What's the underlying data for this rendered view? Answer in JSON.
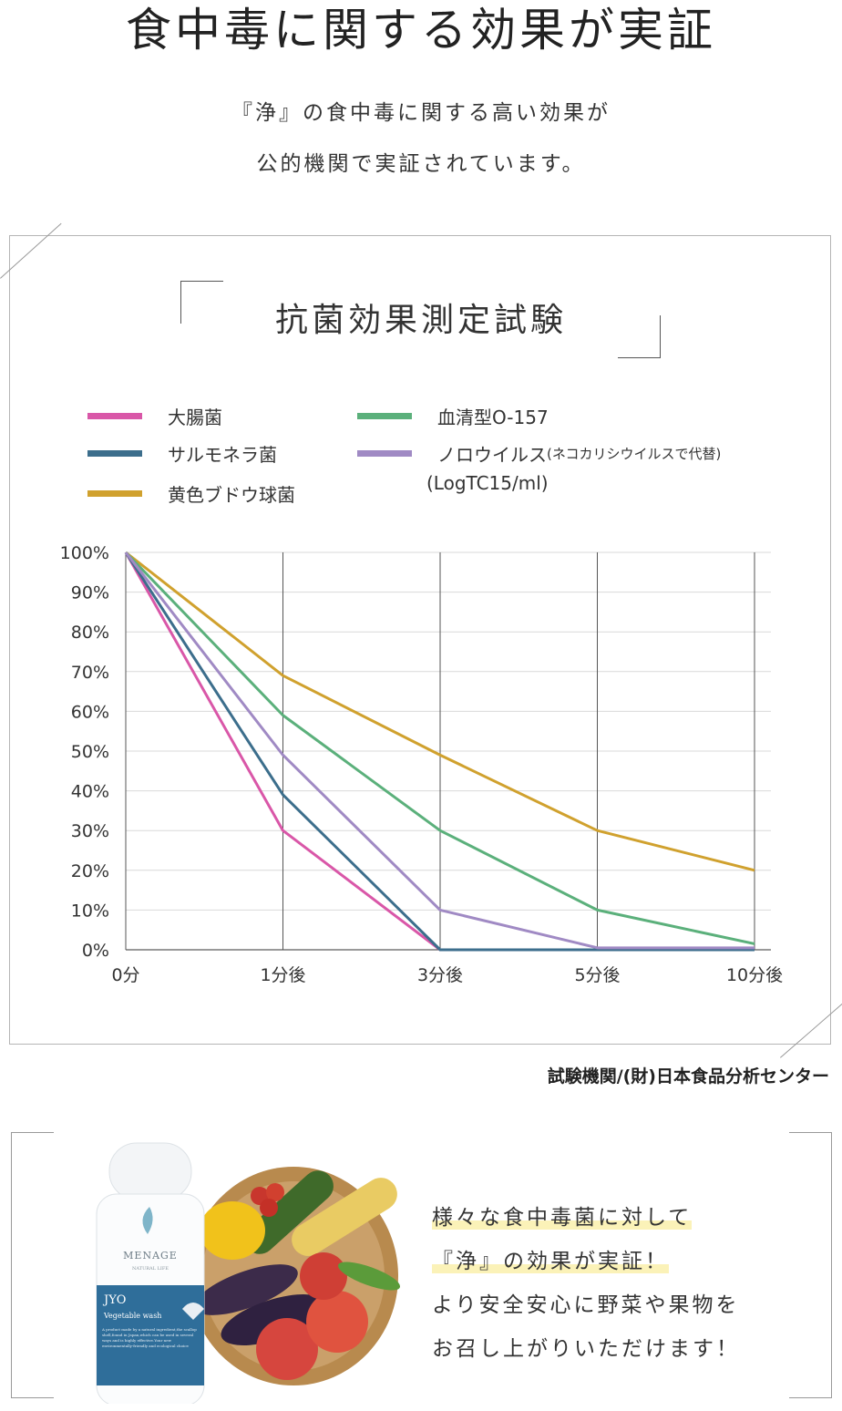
{
  "page": {
    "title": "食中毒に関する効果が実証",
    "lead_lines": [
      "『浄』の食中毒に関する高い効果が",
      "公的機関で実証されています。"
    ]
  },
  "chart_data": {
    "type": "line",
    "title": "抗菌効果測定試験",
    "categories": [
      "0分",
      "1分後",
      "3分後",
      "5分後",
      "10分後"
    ],
    "y_ticks": [
      "0%",
      "10%",
      "20%",
      "30%",
      "40%",
      "50%",
      "60%",
      "70%",
      "80%",
      "90%",
      "100%"
    ],
    "ylim": [
      0,
      100
    ],
    "series": [
      {
        "name": "大腸菌",
        "color": "#d957a8",
        "values": [
          100,
          30,
          0,
          0,
          0
        ]
      },
      {
        "name": "サルモネラ菌",
        "color": "#3c6e8c",
        "values": [
          100,
          39,
          0,
          0,
          0
        ]
      },
      {
        "name": "黄色ブドウ球菌",
        "color": "#d0a12e",
        "values": [
          100,
          69,
          49,
          30,
          20
        ]
      },
      {
        "name": "血清型O-157",
        "color": "#5bb07b",
        "values": [
          100,
          59,
          30,
          10,
          1.5
        ]
      },
      {
        "name": "ノロウイルス",
        "color": "#a08ac4",
        "values": [
          100,
          49,
          10,
          0.5,
          0.5
        ]
      }
    ],
    "legend_note": "(ネコカリシウイルスで代替)",
    "unit_note": "(LogTC15/ml)",
    "source": "試験機関/(財)日本食品分析センター"
  },
  "promo": {
    "lines": [
      "様々な食中毒菌に対して",
      "『浄』の効果が実証！",
      "より安全安心に野菜や果物を",
      "お召し上がりいただけます！"
    ],
    "bottle": {
      "brand": "MENAGE",
      "brand_sub": "NATURAL LIFE",
      "product": "JYO",
      "product_sub": "Vegetable wash",
      "desc": "A product made by a natural ingredient,the scallop shell,found in Japan,which can be used in several ways and is highly effective.Your new environmentally-friendly and ecological choice"
    }
  }
}
